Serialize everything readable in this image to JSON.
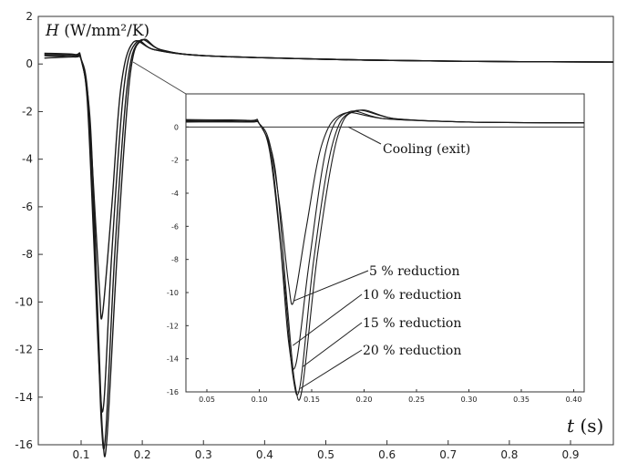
{
  "chart_data": [
    {
      "type": "line",
      "ylabel_var": "H",
      "ylabel_unit": "(W/mm²/K)",
      "xlabel_var": "t",
      "xlabel_unit": "(s)",
      "xlim": [
        0.03,
        0.97
      ],
      "ylim": [
        -16,
        2
      ],
      "x_ticks": [
        "0.1",
        "0.2",
        "0.3",
        "0.4",
        "0.5",
        "0.6",
        "0.7",
        "0.8",
        "0.9"
      ],
      "y_ticks": [
        "2",
        "0",
        "-2",
        "-4",
        "-6",
        "-8",
        "-10",
        "-12",
        "-14",
        "-16"
      ],
      "grid": false,
      "series": [
        {
          "name": "5 % reduction",
          "x": [
            0.04,
            0.09,
            0.1,
            0.11,
            0.12,
            0.13,
            0.135,
            0.15,
            0.165,
            0.185,
            0.22,
            0.3,
            0.5,
            0.7,
            0.97
          ],
          "y": [
            0.25,
            0.3,
            0.2,
            -1.0,
            -5.0,
            -9.5,
            -10.5,
            -6.0,
            -1.0,
            0.9,
            0.6,
            0.35,
            0.2,
            0.12,
            0.08
          ]
        },
        {
          "name": "10 % reduction",
          "x": [
            0.04,
            0.09,
            0.1,
            0.11,
            0.12,
            0.13,
            0.137,
            0.15,
            0.17,
            0.19,
            0.22,
            0.3,
            0.5,
            0.7,
            0.97
          ],
          "y": [
            0.35,
            0.3,
            0.2,
            -1.5,
            -7.0,
            -13.0,
            -14.3,
            -8.0,
            -1.0,
            0.9,
            0.6,
            0.35,
            0.2,
            0.12,
            0.08
          ]
        },
        {
          "name": "15 % reduction",
          "x": [
            0.04,
            0.09,
            0.1,
            0.112,
            0.125,
            0.133,
            0.14,
            0.155,
            0.175,
            0.195,
            0.23,
            0.3,
            0.5,
            0.7,
            0.97
          ],
          "y": [
            0.4,
            0.35,
            0.2,
            -2.0,
            -9.5,
            -15.0,
            -15.6,
            -8.0,
            -1.0,
            0.95,
            0.6,
            0.35,
            0.2,
            0.12,
            0.08
          ]
        },
        {
          "name": "20 % reduction",
          "x": [
            0.04,
            0.09,
            0.1,
            0.115,
            0.128,
            0.135,
            0.142,
            0.16,
            0.18,
            0.2,
            0.23,
            0.3,
            0.5,
            0.7,
            0.97
          ],
          "y": [
            0.45,
            0.4,
            0.2,
            -2.5,
            -11.0,
            -15.5,
            -15.8,
            -7.5,
            -0.5,
            1.0,
            0.6,
            0.35,
            0.2,
            0.12,
            0.08
          ]
        }
      ]
    },
    {
      "type": "line",
      "xlim": [
        0.03,
        0.41
      ],
      "ylim": [
        -16,
        2
      ],
      "x_ticks": [
        "0.05",
        "0.10",
        "0.15",
        "0.20",
        "0.25",
        "0.30",
        "0.35",
        "0.40"
      ],
      "y_ticks": [
        "0",
        "-2",
        "-4",
        "-6",
        "-8",
        "-10",
        "-12",
        "-14",
        "-16"
      ],
      "reference_line_y": 0,
      "series": [
        {
          "name": "5 % reduction",
          "x": [
            0.03,
            0.09,
            0.1,
            0.11,
            0.12,
            0.128,
            0.133,
            0.145,
            0.16,
            0.18,
            0.22,
            0.3,
            0.41
          ],
          "y": [
            0.3,
            0.3,
            0.2,
            -1.0,
            -5.0,
            -9.5,
            -10.5,
            -6.0,
            -1.0,
            0.8,
            0.5,
            0.3,
            0.25
          ]
        },
        {
          "name": "10 % reduction",
          "x": [
            0.03,
            0.09,
            0.1,
            0.11,
            0.12,
            0.128,
            0.135,
            0.148,
            0.165,
            0.185,
            0.22,
            0.3,
            0.41
          ],
          "y": [
            0.35,
            0.3,
            0.2,
            -1.5,
            -7.0,
            -13.0,
            -14.3,
            -8.0,
            -1.0,
            0.9,
            0.5,
            0.3,
            0.25
          ]
        },
        {
          "name": "15 % reduction",
          "x": [
            0.03,
            0.09,
            0.1,
            0.112,
            0.124,
            0.132,
            0.139,
            0.152,
            0.17,
            0.19,
            0.23,
            0.3,
            0.41
          ],
          "y": [
            0.4,
            0.35,
            0.2,
            -2.0,
            -9.5,
            -15.0,
            -15.6,
            -8.0,
            -1.0,
            0.95,
            0.5,
            0.3,
            0.25
          ]
        },
        {
          "name": "20 % reduction",
          "x": [
            0.03,
            0.09,
            0.1,
            0.115,
            0.127,
            0.134,
            0.141,
            0.156,
            0.175,
            0.195,
            0.23,
            0.3,
            0.41
          ],
          "y": [
            0.45,
            0.4,
            0.2,
            -2.5,
            -11.0,
            -15.5,
            -15.8,
            -7.5,
            -0.5,
            1.0,
            0.5,
            0.3,
            0.25
          ]
        }
      ],
      "annotations": [
        {
          "text": "Cooling (exit)",
          "x": 0.185,
          "y": 0
        },
        {
          "text": "5 % reduction",
          "x": 0.133,
          "y": -10.5
        },
        {
          "text": "10 % reduction",
          "x": 0.132,
          "y": -13.2
        },
        {
          "text": "15 % reduction",
          "x": 0.141,
          "y": -14.5
        },
        {
          "text": "20 % reduction",
          "x": 0.139,
          "y": -15.8
        }
      ]
    }
  ]
}
